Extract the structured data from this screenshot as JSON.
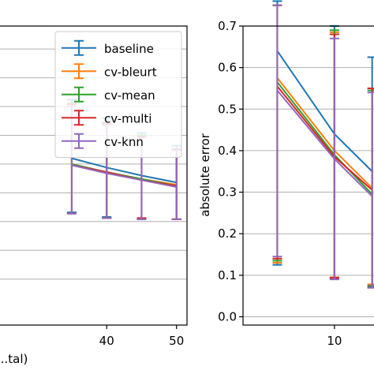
{
  "chart_data": [
    {
      "type": "line",
      "xlabel": "...tal)",
      "ylabel": "",
      "xlim": [
        24.5,
        51.5
      ],
      "ylim": [
        -0.4,
        2.2
      ],
      "xticks": [
        40,
        50
      ],
      "grid": "y",
      "legend_position": "top-right",
      "series": [
        {
          "name": "baseline",
          "color": "#1f77b4",
          "points": [
            {
              "x": 35,
              "y": 1.05,
              "err_low": 0.58,
              "err_high": 1.56
            },
            {
              "x": 40,
              "y": 0.97,
              "err_low": 0.54,
              "err_high": 1.4
            },
            {
              "x": 45,
              "y": 0.9,
              "err_low": 0.53,
              "err_high": 1.27
            },
            {
              "x": 50,
              "y": 0.84,
              "err_low": 0.52,
              "err_high": 1.16
            }
          ]
        },
        {
          "name": "cv-bleurt",
          "color": "#ff7f0e",
          "points": [
            {
              "x": 35,
              "y": 1.0,
              "err_low": 0.57,
              "err_high": 1.52
            },
            {
              "x": 40,
              "y": 0.93,
              "err_low": 0.53,
              "err_high": 1.36
            },
            {
              "x": 45,
              "y": 0.87,
              "err_low": 0.53,
              "err_high": 1.24
            },
            {
              "x": 50,
              "y": 0.82,
              "err_low": 0.52,
              "err_high": 1.13
            }
          ]
        },
        {
          "name": "cv-mean",
          "color": "#2ca02c",
          "points": [
            {
              "x": 35,
              "y": 1.0,
              "err_low": 0.57,
              "err_high": 1.53
            },
            {
              "x": 40,
              "y": 0.93,
              "err_low": 0.53,
              "err_high": 1.36
            },
            {
              "x": 45,
              "y": 0.87,
              "err_low": 0.52,
              "err_high": 1.25
            },
            {
              "x": 50,
              "y": 0.81,
              "err_low": 0.52,
              "err_high": 1.13
            }
          ]
        },
        {
          "name": "cv-multi",
          "color": "#d62728",
          "points": [
            {
              "x": 35,
              "y": 0.99,
              "err_low": 0.57,
              "err_high": 1.52
            },
            {
              "x": 40,
              "y": 0.93,
              "err_low": 0.53,
              "err_high": 1.35
            },
            {
              "x": 45,
              "y": 0.86,
              "err_low": 0.53,
              "err_high": 1.24
            },
            {
              "x": 50,
              "y": 0.81,
              "err_low": 0.52,
              "err_high": 1.13
            }
          ]
        },
        {
          "name": "cv-knn",
          "color": "#9467bd",
          "points": [
            {
              "x": 35,
              "y": 0.99,
              "err_low": 0.57,
              "err_high": 1.5
            },
            {
              "x": 40,
              "y": 0.92,
              "err_low": 0.53,
              "err_high": 1.34
            },
            {
              "x": 45,
              "y": 0.86,
              "err_low": 0.52,
              "err_high": 1.23
            },
            {
              "x": 50,
              "y": 0.8,
              "err_low": 0.52,
              "err_high": 1.12
            }
          ]
        }
      ]
    },
    {
      "type": "line",
      "xlabel": "",
      "ylabel": "absolute error",
      "xlim": [
        2.0,
        13.6
      ],
      "ylim": [
        -0.02,
        0.7
      ],
      "xticks": [
        10
      ],
      "yticks": [
        0.0,
        0.1,
        0.2,
        0.3,
        0.4,
        0.5,
        0.6,
        0.7
      ],
      "ytick_labels": [
        "0.0",
        "0.1",
        "0.2",
        "0.3",
        "0.4",
        "0.5",
        "0.6",
        "0.7"
      ],
      "grid": "y",
      "series": [
        {
          "name": "baseline",
          "color": "#1f77b4",
          "points": [
            {
              "x": 5,
              "y": 0.64,
              "err_low": 0.125,
              "err_high": 0.76
            },
            {
              "x": 10,
              "y": 0.44,
              "err_low": 0.095,
              "err_high": 0.7
            },
            {
              "x": 13.3,
              "y": 0.35,
              "err_low": 0.075,
              "err_high": 0.625
            }
          ]
        },
        {
          "name": "cv-bleurt",
          "color": "#ff7f0e",
          "points": [
            {
              "x": 5,
              "y": 0.575,
              "err_low": 0.13,
              "err_high": 0.75
            },
            {
              "x": 10,
              "y": 0.4,
              "err_low": 0.095,
              "err_high": 0.685
            },
            {
              "x": 13.3,
              "y": 0.31,
              "err_low": 0.078,
              "err_high": 0.55
            }
          ]
        },
        {
          "name": "cv-mean",
          "color": "#2ca02c",
          "points": [
            {
              "x": 5,
              "y": 0.565,
              "err_low": 0.135,
              "err_high": 0.75
            },
            {
              "x": 10,
              "y": 0.39,
              "err_low": 0.092,
              "err_high": 0.69
            },
            {
              "x": 13.3,
              "y": 0.295,
              "err_low": 0.072,
              "err_high": 0.545
            }
          ]
        },
        {
          "name": "cv-multi",
          "color": "#d62728",
          "points": [
            {
              "x": 5,
              "y": 0.555,
              "err_low": 0.14,
              "err_high": 0.75
            },
            {
              "x": 10,
              "y": 0.385,
              "err_low": 0.094,
              "err_high": 0.68
            },
            {
              "x": 13.3,
              "y": 0.305,
              "err_low": 0.07,
              "err_high": 0.55
            }
          ]
        },
        {
          "name": "cv-knn",
          "color": "#9467bd",
          "points": [
            {
              "x": 5,
              "y": 0.545,
              "err_low": 0.145,
              "err_high": 0.75
            },
            {
              "x": 10,
              "y": 0.38,
              "err_low": 0.09,
              "err_high": 0.67
            },
            {
              "x": 13.3,
              "y": 0.29,
              "err_low": 0.07,
              "err_high": 0.54
            }
          ]
        }
      ]
    }
  ]
}
